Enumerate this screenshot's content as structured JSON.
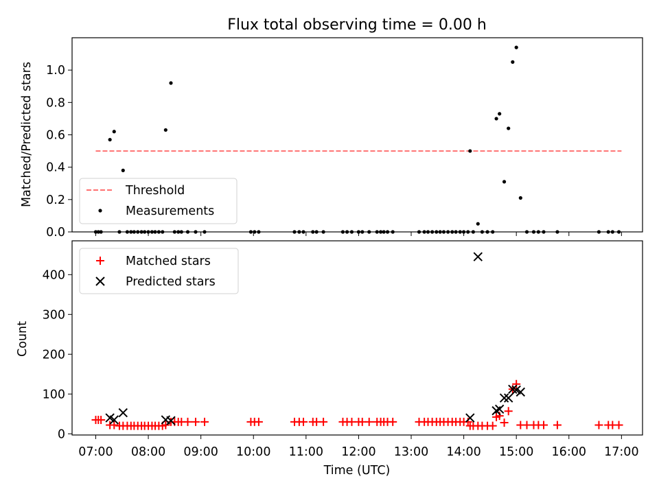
{
  "title": "Flux total observing time = 0.00 h",
  "chart_data": [
    {
      "type": "scatter",
      "ylabel": "Matched/Predicted stars",
      "ylim": [
        0,
        1.2
      ],
      "yticks": [
        "0.0",
        "0.2",
        "0.4",
        "0.6",
        "0.8",
        "1.0"
      ],
      "xlim": [
        6.55,
        17.4
      ],
      "legend_position": "lower-left",
      "threshold": {
        "name": "Threshold",
        "value": 0.5,
        "x_range": [
          7.0,
          17.0
        ],
        "color": "#ff7070"
      },
      "series": [
        {
          "name": "Measurements",
          "color": "#000000",
          "x": [
            7.0,
            7.05,
            7.1,
            7.27,
            7.35,
            7.45,
            7.52,
            7.6,
            7.67,
            7.73,
            7.8,
            7.87,
            7.93,
            8.0,
            8.07,
            8.13,
            8.2,
            8.27,
            8.33,
            8.43,
            8.5,
            8.57,
            8.63,
            8.75,
            8.9,
            9.07,
            9.95,
            10.02,
            10.1,
            10.78,
            10.87,
            10.95,
            11.13,
            11.2,
            11.33,
            11.7,
            11.78,
            11.87,
            12.0,
            12.07,
            12.2,
            12.35,
            12.42,
            12.48,
            12.55,
            12.65,
            13.15,
            13.25,
            13.32,
            13.4,
            13.48,
            13.55,
            13.62,
            13.7,
            13.78,
            13.85,
            13.93,
            14.0,
            14.08,
            14.12,
            14.18,
            14.27,
            14.35,
            14.45,
            14.55,
            14.62,
            14.68,
            14.77,
            14.85,
            14.93,
            15.0,
            15.08,
            15.2,
            15.33,
            15.42,
            15.52,
            15.78,
            16.57,
            16.75,
            16.83,
            16.95
          ],
          "y": [
            0.0,
            0.0,
            0.0,
            0.57,
            0.62,
            0.0,
            0.38,
            0.0,
            0.0,
            0.0,
            0.0,
            0.0,
            0.0,
            0.0,
            0.0,
            0.0,
            0.0,
            0.0,
            0.63,
            0.92,
            0.0,
            0.0,
            0.0,
            0.0,
            0.0,
            0.0,
            0.0,
            0.0,
            0.0,
            0.0,
            0.0,
            0.0,
            0.0,
            0.0,
            0.0,
            0.0,
            0.0,
            0.0,
            0.0,
            0.0,
            0.0,
            0.0,
            0.0,
            0.0,
            0.0,
            0.0,
            0.0,
            0.0,
            0.0,
            0.0,
            0.0,
            0.0,
            0.0,
            0.0,
            0.0,
            0.0,
            0.0,
            0.0,
            0.0,
            0.5,
            0.0,
            0.05,
            0.0,
            0.0,
            0.0,
            0.7,
            0.73,
            0.31,
            0.64,
            1.05,
            1.14,
            0.21,
            0.0,
            0.0,
            0.0,
            0.0,
            0.0,
            0.0,
            0.0,
            0.0,
            0.0
          ]
        }
      ]
    },
    {
      "type": "scatter",
      "xlabel": "Time (UTC)",
      "ylabel": "Count",
      "ylim": [
        -3,
        485
      ],
      "yticks": [
        0,
        100,
        200,
        300,
        400
      ],
      "xlim": [
        6.55,
        17.4
      ],
      "xticks": [
        {
          "value": 7,
          "label": "07:00"
        },
        {
          "value": 8,
          "label": "08:00"
        },
        {
          "value": 9,
          "label": "09:00"
        },
        {
          "value": 10,
          "label": "10:00"
        },
        {
          "value": 11,
          "label": "11:00"
        },
        {
          "value": 12,
          "label": "12:00"
        },
        {
          "value": 13,
          "label": "13:00"
        },
        {
          "value": 14,
          "label": "14:00"
        },
        {
          "value": 15,
          "label": "15:00"
        },
        {
          "value": 16,
          "label": "16:00"
        },
        {
          "value": 17,
          "label": "17:00"
        }
      ],
      "legend_position": "upper-left",
      "series": [
        {
          "name": "Matched stars",
          "marker": "plus",
          "color": "#ff0000",
          "x": [
            7.0,
            7.05,
            7.1,
            7.27,
            7.35,
            7.45,
            7.52,
            7.6,
            7.67,
            7.73,
            7.8,
            7.87,
            7.93,
            8.0,
            8.07,
            8.13,
            8.2,
            8.27,
            8.33,
            8.43,
            8.5,
            8.57,
            8.63,
            8.75,
            8.9,
            9.07,
            9.95,
            10.02,
            10.1,
            10.78,
            10.87,
            10.95,
            11.13,
            11.2,
            11.33,
            11.7,
            11.78,
            11.87,
            12.0,
            12.07,
            12.2,
            12.35,
            12.42,
            12.48,
            12.55,
            12.65,
            13.15,
            13.25,
            13.32,
            13.4,
            13.48,
            13.55,
            13.62,
            13.7,
            13.78,
            13.85,
            13.93,
            14.0,
            14.08,
            14.12,
            14.18,
            14.27,
            14.35,
            14.45,
            14.55,
            14.62,
            14.68,
            14.77,
            14.85,
            14.93,
            15.0,
            15.08,
            15.2,
            15.33,
            15.42,
            15.52,
            15.78,
            16.57,
            16.75,
            16.83,
            16.95
          ],
          "y": [
            35,
            35,
            35,
            22,
            22,
            20,
            20,
            20,
            20,
            20,
            20,
            20,
            20,
            20,
            20,
            20,
            20,
            20,
            22,
            30,
            30,
            30,
            30,
            30,
            30,
            30,
            30,
            30,
            30,
            30,
            30,
            30,
            30,
            30,
            30,
            30,
            30,
            30,
            30,
            30,
            30,
            30,
            30,
            30,
            30,
            30,
            30,
            30,
            30,
            30,
            30,
            30,
            30,
            30,
            30,
            30,
            30,
            30,
            30,
            20,
            20,
            20,
            20,
            20,
            20,
            42,
            45,
            28,
            57,
            112,
            125,
            22,
            22,
            22,
            22,
            22,
            22,
            22,
            22,
            22,
            22
          ]
        },
        {
          "name": "Predicted stars",
          "marker": "x",
          "color": "#000000",
          "x": [
            7.27,
            7.35,
            7.52,
            8.33,
            8.43,
            14.12,
            14.27,
            14.62,
            14.68,
            14.77,
            14.85,
            14.93,
            15.0,
            15.08
          ],
          "y": [
            40,
            35,
            53,
            35,
            33,
            40,
            445,
            58,
            62,
            90,
            90,
            112,
            110,
            105
          ]
        }
      ]
    }
  ]
}
